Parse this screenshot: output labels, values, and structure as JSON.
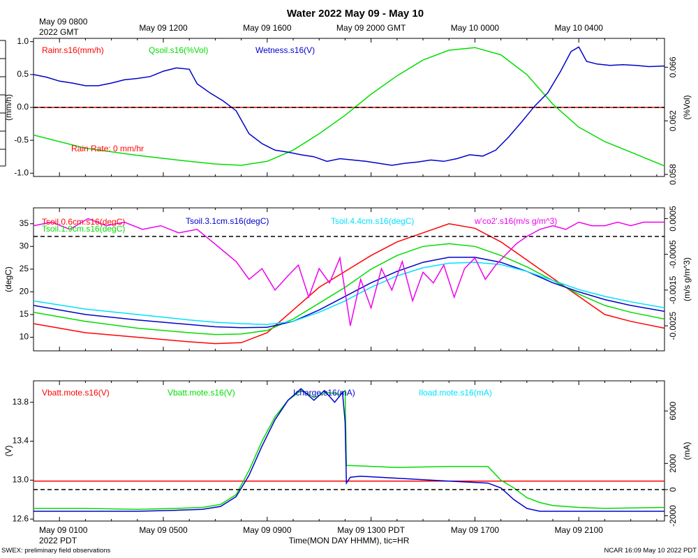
{
  "title": "Water 2022 May 09 - May 10",
  "top_axis": {
    "origin_label_1": "May 09 0800",
    "origin_label_2": "2022 GMT",
    "ticks": [
      {
        "hour": 5,
        "label": "May 09 1200"
      },
      {
        "hour": 9,
        "label": "May 09 1600"
      },
      {
        "hour": 13,
        "label": "May 09 2000 GMT"
      },
      {
        "hour": 17,
        "label": "May 10 0000"
      },
      {
        "hour": 21,
        "label": "May 10 0400"
      }
    ]
  },
  "bottom_axis": {
    "origin_label_1": "May 09 0100",
    "origin_label_2": "2022 PDT",
    "ticks": [
      {
        "hour": 5,
        "label": "May 09 0500"
      },
      {
        "hour": 9,
        "label": "May 09 0900"
      },
      {
        "hour": 13,
        "label": "May 09 1300 PDT"
      },
      {
        "hour": 17,
        "label": "May 09 1700"
      },
      {
        "hour": 21,
        "label": "May 09 2100"
      }
    ],
    "xlabel": "Time(MON DAY HHMM), tic=HR"
  },
  "footer": {
    "left": "SWEX: preliminary field observations",
    "right": "NCAR 16:09 May 10 2022 PDT"
  },
  "colors": {
    "red": "#ff0000",
    "green": "#00dd00",
    "blue": "#0000cc",
    "cyan": "#00e0ff",
    "magenta": "#ee00ee",
    "black": "#000000"
  },
  "chart_data": [
    {
      "type": "line",
      "panel": "rain-soil-wetness",
      "x_range_hours": [
        0,
        24.3
      ],
      "left_axis": {
        "label": "(mm/h)",
        "ylim": [
          -1.05,
          1.05
        ],
        "ticks": [
          -1.0,
          -0.5,
          0.0,
          0.5,
          1.0
        ],
        "tick_labels": [
          "-1.0",
          "-0.5",
          "0.0",
          "0.5",
          "1.0"
        ]
      },
      "right_axis": {
        "label": "(%Vol)",
        "ylim": [
          0.05785,
          0.06815
        ],
        "ticks": [
          0.058,
          0.062,
          0.066
        ],
        "tick_labels": [
          "0.058",
          "0.062",
          "0.066"
        ]
      },
      "zero_line": 0.0,
      "annotation": "Rain Rate: 0 mm/hr",
      "series": [
        {
          "name": "Rainr.s16(mm/h)",
          "color": "red",
          "axis": "left",
          "x": [
            0,
            24.3
          ],
          "values": [
            0,
            0
          ]
        },
        {
          "name": "Qsoil.s16(%Vol)",
          "color": "green",
          "axis": "left",
          "x": [
            0,
            2,
            4,
            6,
            7,
            8,
            9,
            10,
            11,
            12,
            13,
            14,
            15,
            16,
            17,
            18,
            19,
            20,
            21,
            22,
            23,
            24.3
          ],
          "values": [
            -0.42,
            -0.62,
            -0.73,
            -0.82,
            -0.86,
            -0.88,
            -0.82,
            -0.65,
            -0.4,
            -0.12,
            0.2,
            0.48,
            0.72,
            0.87,
            0.91,
            0.8,
            0.5,
            0.05,
            -0.3,
            -0.52,
            -0.68,
            -0.89
          ]
        },
        {
          "name": "Wetness.s16(V)",
          "color": "blue",
          "axis": "left",
          "x": [
            0,
            0.5,
            1.0,
            1.5,
            2.0,
            2.5,
            3.0,
            3.5,
            4.0,
            4.5,
            5.0,
            5.5,
            6.0,
            6.3,
            6.8,
            7.3,
            7.8,
            8.3,
            8.8,
            9.3,
            9.8,
            10.3,
            10.8,
            11.3,
            11.8,
            12.3,
            12.8,
            13.3,
            13.8,
            14.3,
            14.8,
            15.3,
            15.8,
            16.3,
            16.8,
            17.3,
            17.8,
            18.3,
            18.8,
            19.3,
            19.8,
            20.3,
            20.7,
            21.0,
            21.3,
            21.7,
            22.2,
            22.7,
            23.2,
            23.7,
            24.3
          ],
          "values": [
            0.5,
            0.46,
            0.4,
            0.37,
            0.33,
            0.33,
            0.37,
            0.42,
            0.44,
            0.47,
            0.55,
            0.6,
            0.58,
            0.36,
            0.22,
            0.1,
            -0.05,
            -0.4,
            -0.55,
            -0.65,
            -0.68,
            -0.72,
            -0.75,
            -0.82,
            -0.78,
            -0.8,
            -0.82,
            -0.85,
            -0.88,
            -0.85,
            -0.83,
            -0.8,
            -0.82,
            -0.78,
            -0.72,
            -0.74,
            -0.65,
            -0.45,
            -0.22,
            0.02,
            0.22,
            0.55,
            0.85,
            0.92,
            0.7,
            0.66,
            0.64,
            0.65,
            0.64,
            0.62,
            0.63
          ]
        }
      ]
    },
    {
      "type": "line",
      "panel": "soil-temperature-flux",
      "x_range_hours": [
        0,
        24.3
      ],
      "left_axis": {
        "label": "(degC)",
        "ylim": [
          7,
          38.5
        ],
        "ticks": [
          10,
          15,
          20,
          25,
          30,
          35
        ],
        "tick_labels": [
          "10",
          "15",
          "20",
          "25",
          "30",
          "35"
        ]
      },
      "right_axis": {
        "label": "(m/s g/m^3)",
        "ylim": [
          -0.0032,
          0.0008
        ],
        "ticks": [
          -0.0025,
          -0.0015,
          -0.0005,
          0.0005
        ],
        "tick_labels": [
          "-0.0025",
          "-0.0015",
          "-0.0005",
          "0.0005"
        ]
      },
      "zero_line_right": 0.0,
      "series": [
        {
          "name": "Tsoil.0.6cm.s16(degC)",
          "color": "red",
          "axis": "left",
          "x": [
            0,
            2,
            4,
            6,
            7,
            8,
            9,
            10,
            11,
            12,
            13,
            14,
            15,
            16,
            17,
            18,
            19,
            20,
            21,
            22,
            23,
            24.3
          ],
          "values": [
            13,
            11,
            10,
            9,
            8.6,
            8.8,
            11,
            16,
            21,
            24.5,
            28,
            31,
            33,
            35,
            34,
            31,
            27,
            23,
            19,
            15,
            13.5,
            12
          ]
        },
        {
          "name": "Tsoil.1.9cm.s16(degC)",
          "color": "green",
          "axis": "left",
          "x": [
            0,
            2,
            4,
            6,
            7,
            8,
            9,
            10,
            11,
            12,
            13,
            14,
            15,
            16,
            17,
            18,
            19,
            20,
            21,
            22,
            23,
            24.3
          ],
          "values": [
            15.5,
            13.5,
            12,
            11,
            10.6,
            10.7,
            11.5,
            14,
            17.5,
            21,
            25,
            28,
            30,
            30.6,
            30,
            28,
            25.5,
            22.5,
            19.5,
            17,
            15.5,
            14
          ]
        },
        {
          "name": "Tsoil.3.1cm.s16(degC)",
          "color": "blue",
          "axis": "left",
          "x": [
            0,
            2,
            4,
            6,
            7,
            8,
            9,
            10,
            11,
            12,
            13,
            14,
            15,
            16,
            17,
            18,
            19,
            20,
            21,
            22,
            23,
            24.3
          ],
          "values": [
            17,
            15,
            13.8,
            12.8,
            12.3,
            12.1,
            12.2,
            13.5,
            16,
            19,
            22,
            24.5,
            26.5,
            27.6,
            27.6,
            26.5,
            24.5,
            22,
            20,
            18.3,
            17,
            15.7
          ]
        },
        {
          "name": "Tsoil.4.4cm.s16(degC)",
          "color": "cyan",
          "axis": "left",
          "x": [
            0,
            2,
            4,
            6,
            7,
            8,
            9,
            10,
            11,
            12,
            13,
            14,
            15,
            16,
            17,
            18,
            19,
            20,
            21,
            22,
            23,
            24.3
          ],
          "values": [
            18,
            16.2,
            15,
            13.8,
            13.3,
            13,
            12.8,
            13.5,
            15.5,
            18,
            21,
            23.5,
            25.3,
            26.3,
            26.5,
            26,
            24.5,
            22.5,
            20.5,
            19,
            17.8,
            16.5
          ]
        },
        {
          "name": "w'co2'.s16(m/s g/m^3)",
          "color": "magenta",
          "axis": "right",
          "x": [
            0,
            0.7,
            1.4,
            2.1,
            2.8,
            3.5,
            4.2,
            4.9,
            5.6,
            6.3,
            6.8,
            7.3,
            7.8,
            8.3,
            8.8,
            9.3,
            9.8,
            10.2,
            10.6,
            11.0,
            11.4,
            11.8,
            12.2,
            12.6,
            13.0,
            13.4,
            13.8,
            14.2,
            14.6,
            15.0,
            15.4,
            15.8,
            16.2,
            16.6,
            17.0,
            17.4,
            17.8,
            18.2,
            18.6,
            19.0,
            19.5,
            20.0,
            20.5,
            21.0,
            21.5,
            22.0,
            22.5,
            23.0,
            23.5,
            24.3
          ],
          "values": [
            0.0003,
            0.0004,
            0.0002,
            0.0005,
            0.0003,
            0.0004,
            0.0002,
            0.0003,
            0.0001,
            0.0002,
            -0.0001,
            -0.0004,
            -0.0007,
            -0.0012,
            -0.0009,
            -0.0015,
            -0.0011,
            -0.0008,
            -0.0017,
            -0.0009,
            -0.0013,
            -0.0006,
            -0.0025,
            -0.0012,
            -0.002,
            -0.0009,
            -0.0015,
            -0.0007,
            -0.0018,
            -0.001,
            -0.0013,
            -0.0008,
            -0.0017,
            -0.0009,
            -0.0006,
            -0.0012,
            -0.0008,
            -0.0005,
            -0.0002,
            0.0,
            0.0002,
            0.0003,
            0.0002,
            0.0004,
            0.0003,
            0.0003,
            0.0004,
            0.0003,
            0.0004,
            0.0004
          ]
        }
      ]
    },
    {
      "type": "line",
      "panel": "battery",
      "x_range_hours": [
        0,
        24.3
      ],
      "left_axis": {
        "label": "(V)",
        "ylim": [
          12.58,
          14.02
        ],
        "ticks": [
          12.6,
          13.0,
          13.4,
          13.8
        ],
        "tick_labels": [
          "12.6",
          "13.0",
          "13.4",
          "13.8"
        ]
      },
      "right_axis": {
        "label": "(mA)",
        "ylim": [
          -2400,
          8300
        ],
        "ticks": [
          -2000,
          0,
          2000,
          6000
        ],
        "tick_labels": [
          "-2000",
          "0",
          "2000",
          "6000"
        ]
      },
      "zero_line_right": 0,
      "series": [
        {
          "name": "Vbatt.mote.s16(V)",
          "color": "red",
          "axis": "left",
          "x": [
            0,
            24.3
          ],
          "values": [
            12.99,
            12.99
          ]
        },
        {
          "name": "Vbatt.mote.s16(V)",
          "color": "green",
          "axis": "left",
          "x": [
            0,
            2,
            4,
            5.5,
            6.5,
            7.2,
            7.8,
            8.3,
            8.8,
            9.3,
            9.8,
            10.3,
            10.8,
            11.3,
            11.8,
            12.0,
            12.05,
            12.2,
            14,
            16,
            17.5,
            18.0,
            18.5,
            19.0,
            19.5,
            20.0,
            21,
            22,
            24.3
          ],
          "values": [
            12.71,
            12.71,
            12.7,
            12.71,
            12.72,
            12.75,
            12.85,
            13.1,
            13.4,
            13.65,
            13.82,
            13.92,
            13.85,
            13.9,
            13.88,
            13.92,
            13.15,
            13.15,
            13.13,
            13.14,
            13.14,
            13.0,
            12.92,
            12.82,
            12.77,
            12.74,
            12.72,
            12.71,
            12.72
          ]
        },
        {
          "name": "Icharge.s16(mA)",
          "color": "blue",
          "axis": "left",
          "x": [
            0,
            2,
            4,
            5.5,
            6.5,
            7.2,
            7.8,
            8.3,
            8.8,
            9.3,
            9.8,
            10.3,
            10.8,
            11.2,
            11.6,
            11.9,
            12.0,
            12.05,
            12.2,
            12.6,
            14,
            16,
            17.5,
            18.0,
            18.5,
            19.0,
            19.5,
            20.0,
            21,
            22,
            24.3
          ],
          "values": [
            12.68,
            12.68,
            12.68,
            12.69,
            12.7,
            12.73,
            12.83,
            13.05,
            13.35,
            13.62,
            13.82,
            13.94,
            13.82,
            13.92,
            13.8,
            13.9,
            13.6,
            12.97,
            13.03,
            13.04,
            13.02,
            12.99,
            12.97,
            12.92,
            12.8,
            12.71,
            12.68,
            12.68,
            12.68,
            12.68,
            12.68
          ]
        },
        {
          "name": "Iload.mote.s16(mA)",
          "color": "cyan",
          "axis": "left",
          "x": [],
          "values": []
        }
      ]
    }
  ],
  "panels": [
    {
      "labels": [
        "Rainr.s16(mm/h)",
        "Qsoil.s16(%Vol)",
        "Wetness.s16(V)"
      ],
      "annotation": "Rain Rate: 0 mm/hr"
    },
    {
      "labels": [
        "Tsoil.0.6cm.s16(degC)",
        "Tsoil.1.9cm.s16(degC)",
        "Tsoil.3.1cm.s16(degC)",
        "Tsoil.4.4cm.s16(degC)",
        "w'co2'.s16(m/s g/m^3)"
      ]
    },
    {
      "labels": [
        "Vbatt.mote.s16(V)",
        "Vbatt.mote.s16(V)",
        "Icharge.s16(mA)",
        "Iload.mote.s16(mA)"
      ]
    }
  ]
}
